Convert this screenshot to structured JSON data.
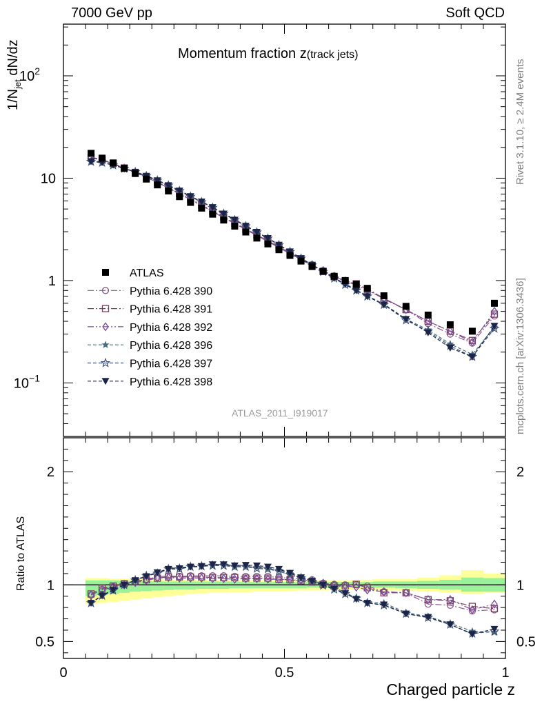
{
  "header": {
    "left": "7000 GeV pp",
    "right": "Soft QCD"
  },
  "side_labels": {
    "rivet": "Rivet 3.1.10, ≥ 2.4M events",
    "mcplots": "mcplots.cern.ch [arXiv:1306.3436]"
  },
  "analysis_tag": "ATLAS_2011_I919017",
  "chart_data": [
    {
      "type": "line",
      "panel": "main",
      "title": "Momentum fraction z(track jets)",
      "title_main": "Momentum fraction z",
      "title_sub": "(track jets)",
      "ylabel_parts": [
        "1/N",
        "jet",
        " dN/dz"
      ],
      "xlim": [
        0,
        1
      ],
      "ylim": [
        0.03,
        320
      ],
      "yscale": "log",
      "y_tick_labels": [
        {
          "value": 0.1,
          "base": "10",
          "exp": "−1"
        },
        {
          "value": 1,
          "base": "1",
          "exp": ""
        },
        {
          "value": 10,
          "base": "10",
          "exp": ""
        },
        {
          "value": 100,
          "base": "10",
          "exp": "2"
        }
      ],
      "legend_position": "middle-left",
      "x": [
        0.0625,
        0.0875,
        0.1125,
        0.1375,
        0.1625,
        0.1875,
        0.2125,
        0.2375,
        0.2625,
        0.2875,
        0.3125,
        0.3375,
        0.3625,
        0.3875,
        0.4125,
        0.4375,
        0.4625,
        0.4875,
        0.5125,
        0.5375,
        0.5625,
        0.5875,
        0.6125,
        0.6375,
        0.6625,
        0.6875,
        0.725,
        0.775,
        0.825,
        0.875,
        0.925,
        0.975
      ],
      "series": [
        {
          "name": "ATLAS",
          "values": [
            17.5,
            15.7,
            14.1,
            12.5,
            11.1,
            9.8,
            8.6,
            7.5,
            6.6,
            5.8,
            5.1,
            4.45,
            3.9,
            3.4,
            2.98,
            2.6,
            2.28,
            2.0,
            1.76,
            1.55,
            1.37,
            1.23,
            1.1,
            1.0,
            0.92,
            0.84,
            0.71,
            0.56,
            0.46,
            0.37,
            0.32,
            0.6
          ]
        },
        {
          "name": "Pythia 6.428 390",
          "values": [
            15.9,
            15.1,
            13.9,
            12.6,
            11.4,
            10.3,
            9.2,
            8.1,
            7.1,
            6.25,
            5.5,
            4.8,
            4.2,
            3.65,
            3.2,
            2.8,
            2.45,
            2.13,
            1.87,
            1.63,
            1.43,
            1.25,
            1.11,
            1.0,
            0.92,
            0.83,
            0.67,
            0.52,
            0.38,
            0.3,
            0.245,
            0.45
          ]
        },
        {
          "name": "Pythia 6.428 391",
          "values": [
            16.0,
            15.2,
            13.9,
            12.6,
            11.4,
            10.2,
            9.1,
            8.05,
            7.05,
            6.2,
            5.45,
            4.75,
            4.15,
            3.62,
            3.15,
            2.76,
            2.42,
            2.1,
            1.83,
            1.6,
            1.4,
            1.23,
            1.09,
            0.99,
            0.93,
            0.82,
            0.66,
            0.52,
            0.4,
            0.32,
            0.26,
            0.47
          ]
        },
        {
          "name": "Pythia 6.428 392",
          "values": [
            15.8,
            15.0,
            13.8,
            12.5,
            11.3,
            10.2,
            9.1,
            8.0,
            7.0,
            6.15,
            5.4,
            4.7,
            4.1,
            3.6,
            3.15,
            2.75,
            2.4,
            2.1,
            1.84,
            1.61,
            1.42,
            1.25,
            1.1,
            0.99,
            0.9,
            0.8,
            0.67,
            0.52,
            0.4,
            0.32,
            0.25,
            0.5
          ]
        },
        {
          "name": "Pythia 6.428 396",
          "values": [
            14.6,
            14.3,
            13.5,
            12.5,
            11.6,
            10.6,
            9.6,
            8.6,
            7.6,
            6.7,
            5.9,
            5.2,
            4.55,
            3.95,
            3.45,
            3.0,
            2.6,
            2.24,
            1.93,
            1.66,
            1.43,
            1.24,
            1.07,
            0.93,
            0.81,
            0.71,
            0.59,
            0.42,
            0.33,
            0.24,
            0.19,
            0.35
          ]
        },
        {
          "name": "Pythia 6.428 397",
          "values": [
            14.5,
            14.2,
            13.4,
            12.4,
            11.5,
            10.5,
            9.5,
            8.5,
            7.5,
            6.6,
            5.85,
            5.15,
            4.5,
            3.9,
            3.4,
            2.96,
            2.58,
            2.22,
            1.91,
            1.64,
            1.41,
            1.22,
            1.05,
            0.91,
            0.8,
            0.7,
            0.58,
            0.41,
            0.32,
            0.23,
            0.18,
            0.34
          ]
        },
        {
          "name": "Pythia 6.428 398",
          "values": [
            14.6,
            14.3,
            13.5,
            12.5,
            11.5,
            10.5,
            9.5,
            8.5,
            7.55,
            6.65,
            5.9,
            5.2,
            4.5,
            3.92,
            3.42,
            2.98,
            2.59,
            2.23,
            1.92,
            1.65,
            1.42,
            1.23,
            1.06,
            0.92,
            0.8,
            0.7,
            0.58,
            0.42,
            0.31,
            0.22,
            0.18,
            0.36
          ]
        }
      ]
    },
    {
      "type": "line",
      "panel": "ratio",
      "ylabel": "Ratio to ATLAS",
      "xlabel": "Charged particle z",
      "xlim": [
        0,
        1
      ],
      "ylim": [
        0.35,
        2.3
      ],
      "y_ticks": [
        0.5,
        1,
        2
      ],
      "y_tick_labels": [
        "0.5",
        "1",
        "2"
      ],
      "x_ticks": [
        0,
        0.5,
        1
      ],
      "x_tick_labels": [
        "0",
        "0.5",
        "1"
      ],
      "x_bin_edges": [
        0.05,
        0.075,
        0.1,
        0.125,
        0.15,
        0.175,
        0.2,
        0.225,
        0.25,
        0.275,
        0.3,
        0.325,
        0.35,
        0.375,
        0.4,
        0.425,
        0.45,
        0.475,
        0.5,
        0.525,
        0.55,
        0.575,
        0.6,
        0.625,
        0.65,
        0.675,
        0.7,
        0.75,
        0.8,
        0.85,
        0.9,
        0.95,
        1.0
      ],
      "band_total": {
        "lower": [
          0.83,
          0.84,
          0.85,
          0.86,
          0.87,
          0.88,
          0.89,
          0.9,
          0.91,
          0.92,
          0.925,
          0.93,
          0.93,
          0.935,
          0.935,
          0.94,
          0.94,
          0.94,
          0.945,
          0.95,
          0.95,
          0.95,
          0.96,
          0.96,
          0.96,
          0.955,
          0.95,
          0.95,
          0.94,
          0.93,
          0.92,
          0.93
        ],
        "upper": [
          1.06,
          1.06,
          1.055,
          1.055,
          1.05,
          1.05,
          1.05,
          1.045,
          1.045,
          1.045,
          1.04,
          1.04,
          1.04,
          1.04,
          1.04,
          1.04,
          1.04,
          1.04,
          1.04,
          1.04,
          1.04,
          1.04,
          1.04,
          1.04,
          1.045,
          1.045,
          1.05,
          1.05,
          1.065,
          1.085,
          1.13,
          1.1
        ]
      },
      "band_stat": {
        "lower": [
          0.9,
          0.91,
          0.92,
          0.93,
          0.94,
          0.945,
          0.95,
          0.955,
          0.96,
          0.96,
          0.965,
          0.965,
          0.965,
          0.97,
          0.97,
          0.97,
          0.97,
          0.97,
          0.97,
          0.97,
          0.975,
          0.975,
          0.975,
          0.98,
          0.98,
          0.975,
          0.975,
          0.97,
          0.965,
          0.96,
          0.94,
          0.94
        ],
        "upper": [
          1.04,
          1.04,
          1.04,
          1.035,
          1.035,
          1.035,
          1.03,
          1.03,
          1.03,
          1.03,
          1.03,
          1.03,
          1.03,
          1.03,
          1.025,
          1.025,
          1.025,
          1.025,
          1.025,
          1.025,
          1.025,
          1.025,
          1.025,
          1.025,
          1.025,
          1.025,
          1.03,
          1.03,
          1.035,
          1.045,
          1.065,
          1.06
        ]
      },
      "series": [
        {
          "name": "Pythia 6.428 390",
          "values": [
            0.91,
            0.96,
            0.985,
            1.01,
            1.03,
            1.05,
            1.07,
            1.08,
            1.075,
            1.08,
            1.08,
            1.08,
            1.08,
            1.075,
            1.075,
            1.075,
            1.075,
            1.065,
            1.06,
            1.05,
            1.045,
            1.015,
            1.005,
            1.0,
            1.0,
            0.99,
            0.94,
            0.93,
            0.83,
            0.82,
            0.77,
            0.78
          ]
        },
        {
          "name": "Pythia 6.428 391",
          "values": [
            0.92,
            0.97,
            0.99,
            1.01,
            1.03,
            1.045,
            1.06,
            1.07,
            1.07,
            1.07,
            1.07,
            1.065,
            1.065,
            1.065,
            1.06,
            1.06,
            1.06,
            1.05,
            1.045,
            1.035,
            1.025,
            1.005,
            0.99,
            0.99,
            1.005,
            0.975,
            0.93,
            0.93,
            0.87,
            0.86,
            0.81,
            0.79
          ]
        },
        {
          "name": "Pythia 6.428 392",
          "values": [
            0.91,
            0.955,
            0.98,
            1.0,
            1.02,
            1.04,
            1.06,
            1.065,
            1.06,
            1.06,
            1.06,
            1.055,
            1.055,
            1.05,
            1.055,
            1.055,
            1.05,
            1.05,
            1.045,
            1.04,
            1.035,
            1.015,
            1.0,
            0.99,
            0.98,
            0.955,
            0.94,
            0.93,
            0.87,
            0.87,
            0.78,
            0.83
          ]
        },
        {
          "name": "Pythia 6.428 396",
          "values": [
            0.84,
            0.91,
            0.955,
            1.0,
            1.045,
            1.08,
            1.11,
            1.145,
            1.155,
            1.16,
            1.16,
            1.175,
            1.18,
            1.165,
            1.165,
            1.155,
            1.145,
            1.13,
            1.1,
            1.07,
            1.045,
            1.01,
            0.975,
            0.935,
            0.88,
            0.845,
            0.84,
            0.755,
            0.72,
            0.66,
            0.59,
            0.58
          ]
        },
        {
          "name": "Pythia 6.428 397",
          "values": [
            0.84,
            0.905,
            0.95,
            1.0,
            1.04,
            1.08,
            1.1,
            1.14,
            1.14,
            1.16,
            1.165,
            1.17,
            1.17,
            1.16,
            1.16,
            1.145,
            1.14,
            1.12,
            1.09,
            1.06,
            1.03,
            0.995,
            0.96,
            0.92,
            0.88,
            0.84,
            0.82,
            0.745,
            0.71,
            0.65,
            0.57,
            0.59
          ]
        },
        {
          "name": "Pythia 6.428 398",
          "values": [
            0.84,
            0.905,
            0.955,
            1.0,
            1.04,
            1.075,
            1.11,
            1.14,
            1.145,
            1.16,
            1.165,
            1.18,
            1.18,
            1.17,
            1.175,
            1.17,
            1.16,
            1.14,
            1.105,
            1.065,
            1.035,
            1.0,
            0.965,
            0.925,
            0.875,
            0.84,
            0.825,
            0.745,
            0.715,
            0.65,
            0.565,
            0.61
          ]
        }
      ]
    }
  ],
  "colors": {
    "data": "#000000",
    "p390": "#8a5a8a",
    "p391": "#7a3c5e",
    "p392": "#7a4b9a",
    "p396": "#4a6e80",
    "p397": "#3e5278",
    "p398": "#1c2448",
    "band_total": "#ffff99",
    "band_stat": "#99f299",
    "side_text": "#808080"
  },
  "markers": {
    "ATLAS": "filled-square",
    "Pythia 6.428 390": "open-circle",
    "Pythia 6.428 391": "open-square",
    "Pythia 6.428 392": "open-diamond",
    "Pythia 6.428 396": "filled-star",
    "Pythia 6.428 397": "open-star",
    "Pythia 6.428 398": "filled-triangle-down"
  }
}
